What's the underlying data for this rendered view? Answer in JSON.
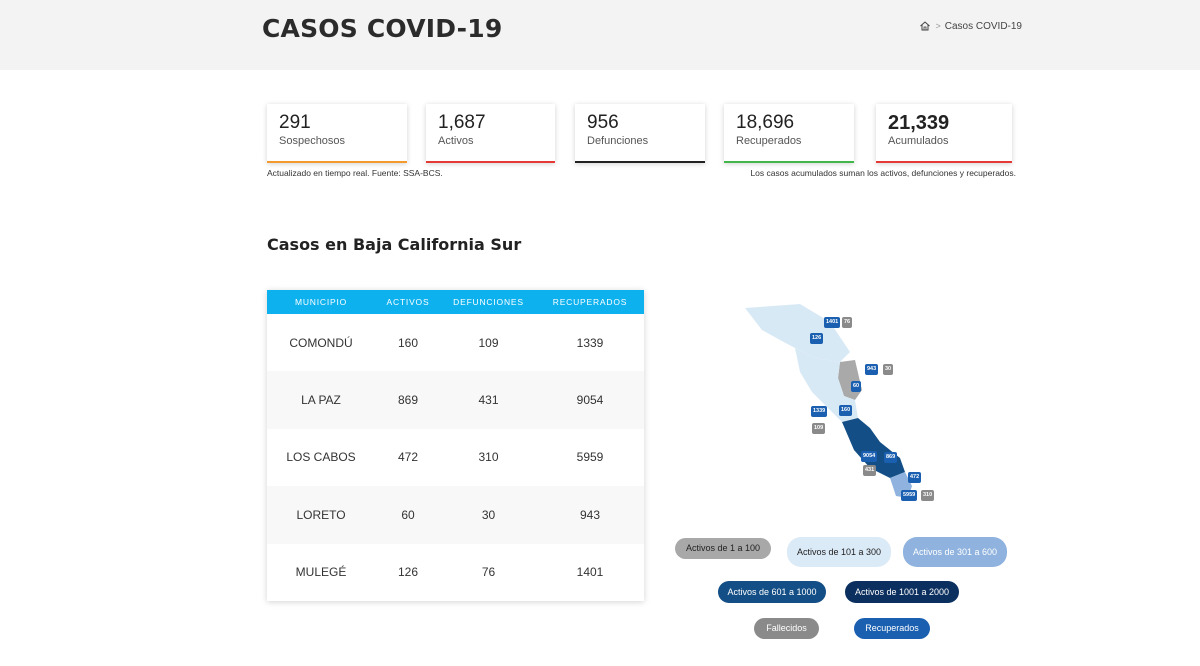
{
  "header": {
    "title": "CASOS COVID-19",
    "breadcrumb_current": "Casos COVID-19",
    "breadcrumb_sep": ">"
  },
  "stats": [
    {
      "value": "291",
      "label": "Sospechosos",
      "color": "#f29a2e"
    },
    {
      "value": "1,687",
      "label": "Activos",
      "color": "#e53935"
    },
    {
      "value": "956",
      "label": "Defunciones",
      "color": "#222222"
    },
    {
      "value": "18,696",
      "label": "Recuperados",
      "color": "#43b649"
    },
    {
      "value": "21,339",
      "label": "Acumulados",
      "color": "#e53935"
    }
  ],
  "notes": {
    "source": "Actualizado en tiempo real. Fuente: SSA-BCS.",
    "accumulated": "Los casos acumulados suman los activos, defunciones y recuperados."
  },
  "section": {
    "title": "Casos en Baja California Sur"
  },
  "table": {
    "headers": [
      "MUNICIPIO",
      "ACTIVOS",
      "DEFUNCIONES",
      "RECUPERADOS"
    ],
    "rows": [
      [
        "COMONDÚ",
        "160",
        "109",
        "1339"
      ],
      [
        "LA PAZ",
        "869",
        "431",
        "9054"
      ],
      [
        "LOS CABOS",
        "472",
        "310",
        "5959"
      ],
      [
        "LORETO",
        "60",
        "30",
        "943"
      ],
      [
        "MULEGÉ",
        "126",
        "76",
        "1401"
      ]
    ]
  },
  "map": {
    "pins": [
      {
        "text": "1401",
        "type": "blue"
      },
      {
        "text": "76",
        "type": "gray"
      },
      {
        "text": "126",
        "type": "blue"
      },
      {
        "text": "943",
        "type": "blue"
      },
      {
        "text": "30",
        "type": "gray"
      },
      {
        "text": "60",
        "type": "blue"
      },
      {
        "text": "160",
        "type": "blue"
      },
      {
        "text": "1339",
        "type": "blue"
      },
      {
        "text": "109",
        "type": "gray"
      },
      {
        "text": "9054",
        "type": "blue"
      },
      {
        "text": "869",
        "type": "blue"
      },
      {
        "text": "431",
        "type": "gray"
      },
      {
        "text": "472",
        "type": "blue"
      },
      {
        "text": "5959",
        "type": "blue"
      },
      {
        "text": "310",
        "type": "gray"
      }
    ]
  },
  "legend": [
    {
      "label": "Activos de 1 a 100",
      "bg": "#a8a8a8",
      "fg": "#222222"
    },
    {
      "label": "Activos de 101 a 300",
      "bg": "#dbeaf7",
      "fg": "#222222"
    },
    {
      "label": "Activos de 301 a 600",
      "bg": "#8fb3de",
      "fg": "#ffffff"
    },
    {
      "label": "Activos de 601 a 1000",
      "bg": "#134f86",
      "fg": "#ffffff"
    },
    {
      "label": "Activos de 1001 a 2000",
      "bg": "#0b2f5e",
      "fg": "#ffffff"
    },
    {
      "label": "Fallecidos",
      "bg": "#8a8a8a",
      "fg": "#ffffff"
    },
    {
      "label": "Recuperados",
      "bg": "#1a5fb0",
      "fg": "#ffffff"
    }
  ]
}
